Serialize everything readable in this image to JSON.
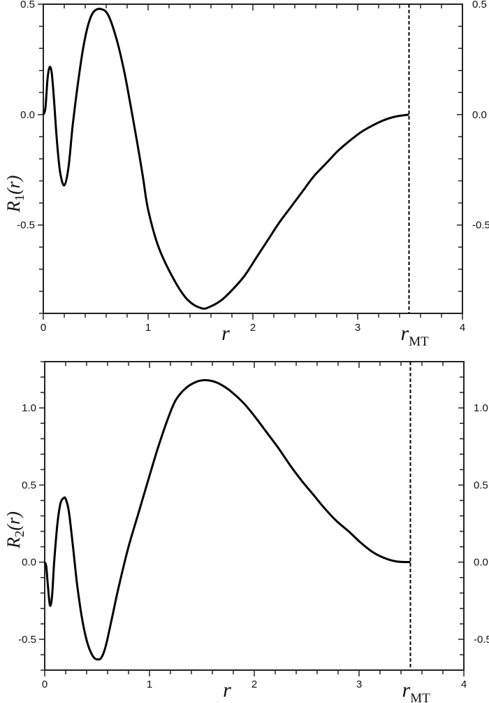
{
  "chart_data": [
    {
      "type": "line",
      "panel": "top",
      "title": "",
      "xlabel": "r",
      "ylabel": "R1(r)",
      "ylabel_main": "R",
      "ylabel_sub": "1",
      "ylabel_arg": "(r)",
      "xlim": [
        0,
        4
      ],
      "ylim": [
        -0.9,
        0.5
      ],
      "xticks": [
        0,
        1,
        2,
        3,
        4
      ],
      "xtick_labels": [
        "0",
        "1",
        "2",
        "3",
        "4"
      ],
      "x_minor_step": 0.2,
      "yticks": [
        -0.5,
        0.0,
        0.5
      ],
      "ytick_labels": [
        "-0.5",
        "0.0",
        "0.5"
      ],
      "y_minor_step": 0.1,
      "right_axis_labels": true,
      "grid": false,
      "annotation": {
        "type": "vline",
        "x": 3.49,
        "style": "dashed",
        "label_main": "r",
        "label_sub": "MT"
      },
      "series": [
        {
          "name": "R1(r)",
          "color": "#000000",
          "x": [
            0,
            0.02,
            0.04,
            0.06,
            0.08,
            0.1,
            0.13,
            0.16,
            0.2,
            0.24,
            0.28,
            0.33,
            0.38,
            0.43,
            0.48,
            0.55,
            0.62,
            0.7,
            0.77,
            0.83,
            0.89,
            0.95,
            1.0,
            1.1,
            1.25,
            1.38,
            1.51,
            1.59,
            1.7,
            1.81,
            1.92,
            2.03,
            2.14,
            2.25,
            2.36,
            2.47,
            2.58,
            2.7,
            2.81,
            2.92,
            3.03,
            3.14,
            3.25,
            3.37,
            3.49
          ],
          "y": [
            0,
            0.03,
            0.16,
            0.215,
            0.19,
            0.08,
            -0.12,
            -0.26,
            -0.32,
            -0.24,
            -0.05,
            0.14,
            0.3,
            0.41,
            0.465,
            0.478,
            0.45,
            0.34,
            0.2,
            0.05,
            -0.11,
            -0.28,
            -0.43,
            -0.6,
            -0.75,
            -0.84,
            -0.877,
            -0.87,
            -0.84,
            -0.79,
            -0.73,
            -0.65,
            -0.57,
            -0.49,
            -0.42,
            -0.35,
            -0.28,
            -0.22,
            -0.165,
            -0.12,
            -0.08,
            -0.05,
            -0.025,
            -0.008,
            0
          ]
        }
      ]
    },
    {
      "type": "line",
      "panel": "bottom",
      "title": "",
      "xlabel": "r",
      "ylabel": "R2(r)",
      "ylabel_main": "R",
      "ylabel_sub": "2",
      "ylabel_arg": "(r)",
      "xlim": [
        0,
        4
      ],
      "ylim": [
        -0.7,
        1.3
      ],
      "xticks": [
        0,
        1,
        2,
        3,
        4
      ],
      "xtick_labels": [
        "0",
        "1",
        "2",
        "3",
        "4"
      ],
      "x_minor_step": 0.2,
      "yticks": [
        -0.5,
        0.0,
        0.5,
        1.0
      ],
      "ytick_labels": [
        "-0.5",
        "0.0",
        "0.5",
        "1.0"
      ],
      "y_minor_step": 0.1,
      "right_axis_labels": true,
      "grid": false,
      "annotation": {
        "type": "vline",
        "x": 3.49,
        "style": "dashed",
        "label_main": "r",
        "label_sub": "MT"
      },
      "series": [
        {
          "name": "R2(r)",
          "color": "#000000",
          "x": [
            0,
            0.015,
            0.03,
            0.05,
            0.07,
            0.09,
            0.12,
            0.15,
            0.18,
            0.2,
            0.23,
            0.27,
            0.31,
            0.36,
            0.41,
            0.46,
            0.5,
            0.54,
            0.58,
            0.63,
            0.68,
            0.72,
            0.8,
            0.9,
            1.0,
            1.08,
            1.17,
            1.25,
            1.35,
            1.45,
            1.53,
            1.62,
            1.71,
            1.79,
            1.9,
            2.01,
            2.12,
            2.23,
            2.34,
            2.45,
            2.56,
            2.67,
            2.78,
            2.9,
            3.01,
            3.12,
            3.23,
            3.35,
            3.49
          ],
          "y": [
            0,
            -0.03,
            -0.15,
            -0.28,
            -0.22,
            0.0,
            0.24,
            0.38,
            0.415,
            0.41,
            0.33,
            0.1,
            -0.15,
            -0.38,
            -0.53,
            -0.61,
            -0.63,
            -0.62,
            -0.55,
            -0.4,
            -0.24,
            -0.12,
            0.1,
            0.33,
            0.56,
            0.74,
            0.92,
            1.05,
            1.13,
            1.17,
            1.18,
            1.17,
            1.14,
            1.1,
            1.03,
            0.94,
            0.84,
            0.74,
            0.63,
            0.53,
            0.44,
            0.35,
            0.27,
            0.2,
            0.13,
            0.07,
            0.03,
            0.005,
            0
          ]
        }
      ]
    }
  ]
}
